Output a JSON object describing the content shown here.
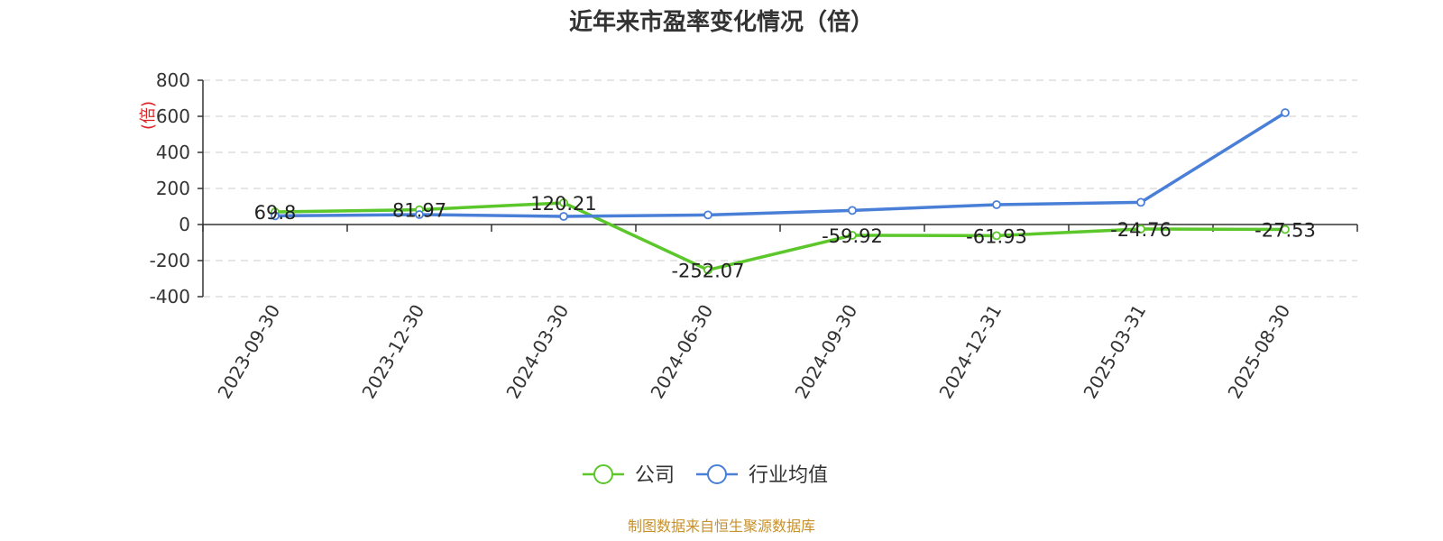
{
  "chart_data": {
    "type": "line",
    "title": "近年来市盈率变化情况（倍）",
    "ylabel": "(倍)",
    "xlabel": "",
    "categories": [
      "2023-09-30",
      "2023-12-30",
      "2024-03-30",
      "2024-06-30",
      "2024-09-30",
      "2024-12-31",
      "2025-03-31",
      "2025-08-30"
    ],
    "ylim": [
      -400,
      800
    ],
    "yticks": [
      800,
      600,
      400,
      200,
      0,
      -200,
      -400
    ],
    "grid": true,
    "legend_position": "bottom-center",
    "series": [
      {
        "name": "公司",
        "color": "#5bc72a",
        "values": [
          69.8,
          81.97,
          120.21,
          -252.07,
          -59.92,
          -61.93,
          -24.76,
          -27.53
        ],
        "labels": [
          "69.8",
          "81.97",
          "120.21",
          "-252.07",
          "-59.92",
          "-61.93",
          "-24.76",
          "-27.53"
        ]
      },
      {
        "name": "行业均值",
        "color": "#4a7fd8",
        "values": [
          48,
          55,
          45,
          53,
          78,
          110,
          123,
          620
        ]
      }
    ],
    "source": "制图数据来自恒生聚源数据库"
  }
}
